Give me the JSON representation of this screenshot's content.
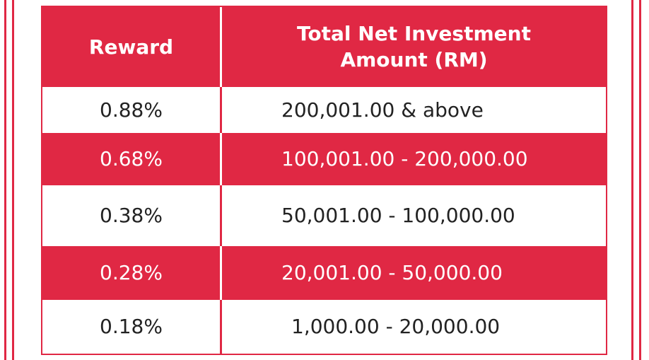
{
  "table": {
    "header": {
      "reward": "Reward",
      "amount_line1": "Total Net Investment",
      "amount_line2": "Amount (RM)"
    },
    "rows": [
      {
        "reward": "0.88%",
        "amount": "200,001.00 & above"
      },
      {
        "reward": "0.68%",
        "amount": "100,001.00 - 200,000.00"
      },
      {
        "reward": "0.38%",
        "amount": "50,001.00 - 100,000.00"
      },
      {
        "reward": "0.28%",
        "amount": "20,001.00 - 50,000.00"
      },
      {
        "reward": "0.18%",
        "amount": "1,000.00 - 20,000.00"
      }
    ]
  },
  "colors": {
    "accent": "#e02844",
    "text_dark": "#222222",
    "background": "#ffffff"
  }
}
